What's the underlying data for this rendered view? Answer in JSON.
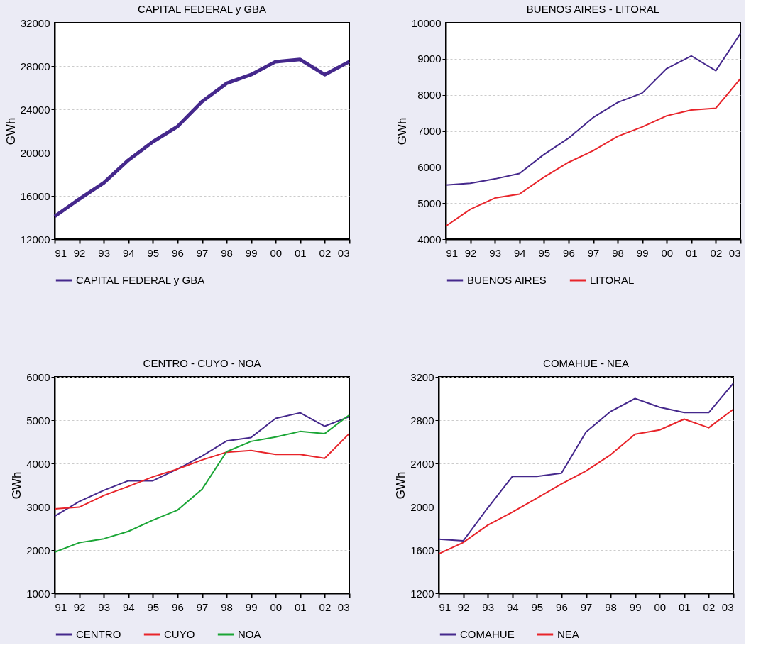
{
  "chart_data": [
    {
      "type": "line",
      "title": "CAPITAL FEDERAL y GBA",
      "ylabel": "GWh",
      "categories": [
        "91",
        "92",
        "93",
        "94",
        "95",
        "96",
        "97",
        "98",
        "99",
        "00",
        "01",
        "02",
        "03"
      ],
      "ylim": [
        12000,
        32000
      ],
      "yticks": [
        12000,
        16000,
        20000,
        24000,
        28000,
        32000
      ],
      "grid": "y",
      "legend": "bottom",
      "line_style": "solid",
      "series": [
        {
          "name": "CAPITAL FEDERAL y GBA",
          "color": "#45288c",
          "values": [
            14100,
            15700,
            17200,
            19300,
            21000,
            22400,
            24700,
            26400,
            27200,
            28400,
            28600,
            27200,
            28400
          ]
        }
      ]
    },
    {
      "type": "line",
      "title": "BUENOS AIRES - LITORAL",
      "ylabel": "GWh",
      "categories": [
        "91",
        "92",
        "93",
        "94",
        "95",
        "96",
        "97",
        "98",
        "99",
        "00",
        "01",
        "02",
        "03"
      ],
      "ylim": [
        4000,
        10000
      ],
      "yticks": [
        4000,
        5000,
        6000,
        7000,
        8000,
        9000,
        10000
      ],
      "grid": "y",
      "legend": "bottom",
      "line_style": "solid",
      "series": [
        {
          "name": "BUENOS AIRES",
          "color": "#45288c",
          "values": [
            5500,
            5550,
            5670,
            5820,
            6350,
            6800,
            7370,
            7790,
            8050,
            8730,
            9080,
            8670,
            9700
          ]
        },
        {
          "name": "LITORAL",
          "color": "#e8242a",
          "values": [
            4360,
            4830,
            5140,
            5250,
            5720,
            6130,
            6450,
            6850,
            7110,
            7420,
            7580,
            7630,
            8450
          ]
        }
      ]
    },
    {
      "type": "line",
      "title": "CENTRO - CUYO - NOA",
      "ylabel": "GWh",
      "categories": [
        "91",
        "92",
        "93",
        "94",
        "95",
        "96",
        "97",
        "98",
        "99",
        "00",
        "01",
        "02",
        "03"
      ],
      "ylim": [
        1000,
        6000
      ],
      "yticks": [
        1000,
        2000,
        3000,
        4000,
        5000,
        6000
      ],
      "grid": "y",
      "legend": "bottom",
      "line_style": "solid",
      "series": [
        {
          "name": "CENTRO",
          "color": "#45288c",
          "values": [
            2780,
            3120,
            3380,
            3600,
            3600,
            3870,
            4170,
            4520,
            4600,
            5040,
            5170,
            4860,
            5080
          ]
        },
        {
          "name": "CUYO",
          "color": "#e8242a",
          "values": [
            2950,
            2990,
            3260,
            3470,
            3690,
            3870,
            4080,
            4260,
            4300,
            4210,
            4210,
            4120,
            4690
          ]
        },
        {
          "name": "NOA",
          "color": "#1aa535",
          "values": [
            1950,
            2170,
            2260,
            2430,
            2690,
            2920,
            3400,
            4270,
            4510,
            4610,
            4740,
            4690,
            5120
          ]
        }
      ]
    },
    {
      "type": "line",
      "title": "COMAHUE - NEA",
      "ylabel": "GWh",
      "categories": [
        "91",
        "92",
        "93",
        "94",
        "95",
        "96",
        "97",
        "98",
        "99",
        "00",
        "01",
        "02",
        "03"
      ],
      "ylim": [
        1200,
        3200
      ],
      "yticks": [
        1200,
        1600,
        2000,
        2400,
        2800,
        3200
      ],
      "grid": "y",
      "legend": "bottom",
      "line_style": "solid",
      "series": [
        {
          "name": "COMAHUE",
          "color": "#45288c",
          "values": [
            1700,
            1685,
            1990,
            2280,
            2280,
            2310,
            2690,
            2880,
            3000,
            2920,
            2870,
            2870,
            3140
          ]
        },
        {
          "name": "NEA",
          "color": "#e8242a",
          "values": [
            1565,
            1670,
            1830,
            1950,
            2080,
            2210,
            2330,
            2480,
            2670,
            2710,
            2810,
            2730,
            2900
          ]
        }
      ]
    }
  ]
}
